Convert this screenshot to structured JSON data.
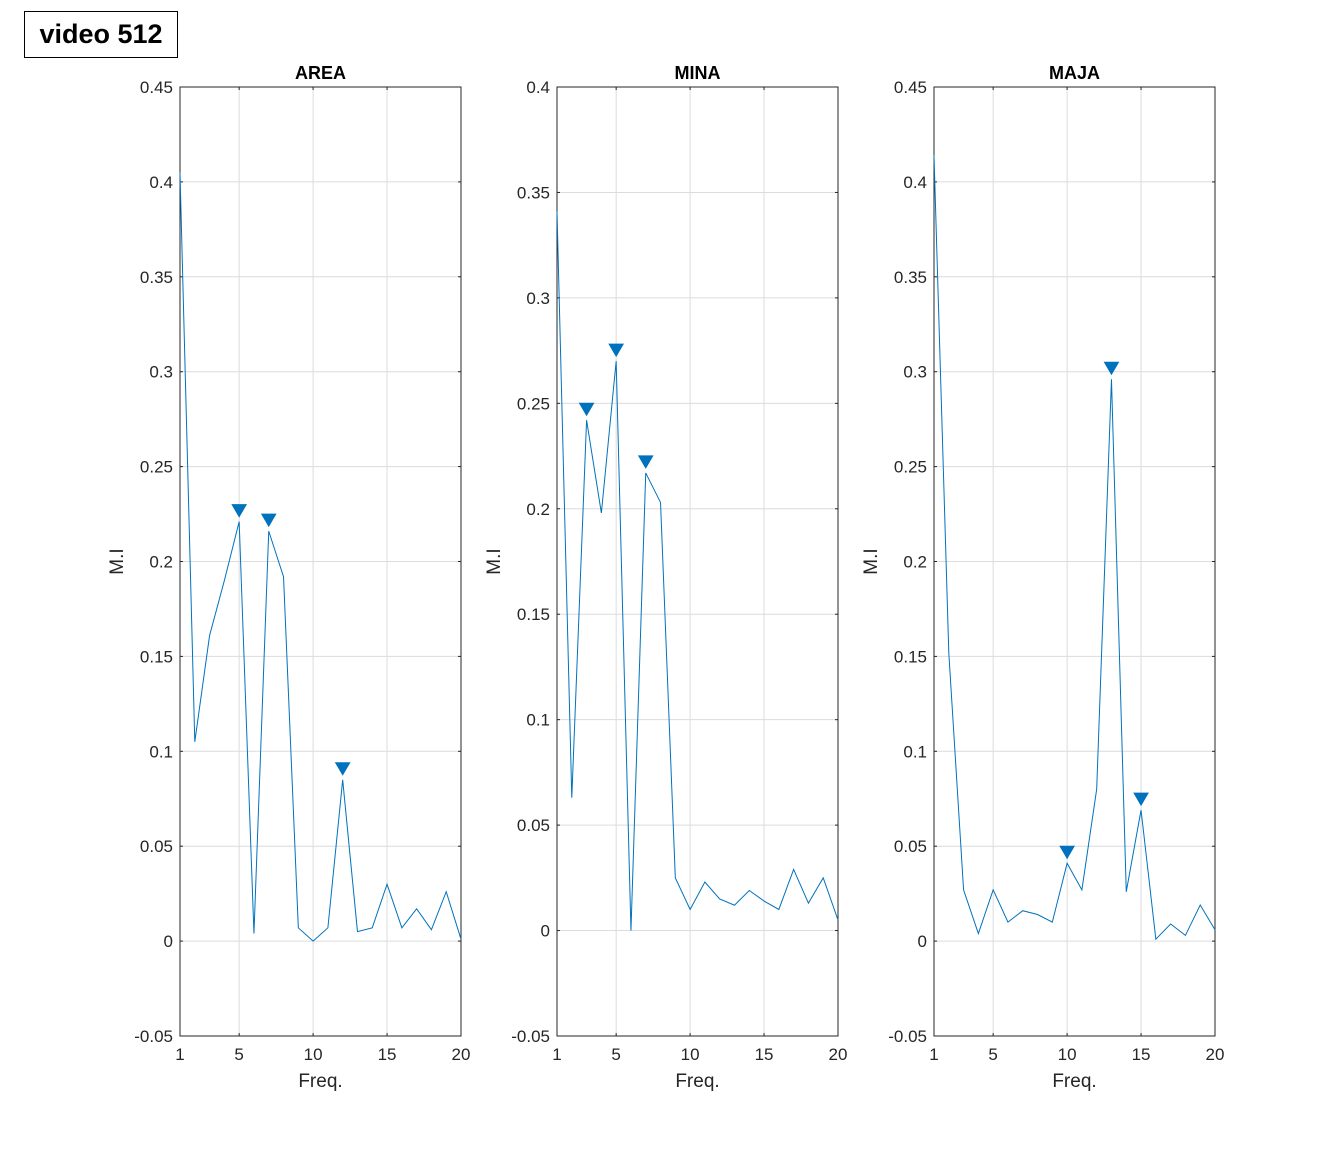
{
  "figure": {
    "annotation": "video 512",
    "colors": {
      "line": "#0072BD",
      "grid": "#dcdcdc",
      "axes": "#262626",
      "background": "#ffffff"
    }
  },
  "chart_data": [
    {
      "type": "line",
      "title": "AREA",
      "xlabel": "Freq.",
      "ylabel": "M.I",
      "xlim": [
        1,
        20
      ],
      "ylim": [
        -0.05,
        0.45
      ],
      "xticks": [
        1,
        5,
        10,
        15,
        20
      ],
      "xtick_labels": [
        "1",
        "5",
        "10",
        "15",
        "20"
      ],
      "yticks": [
        -0.05,
        0,
        0.05,
        0.1,
        0.15,
        0.2,
        0.25,
        0.3,
        0.35,
        0.4,
        0.45
      ],
      "ytick_labels": [
        "-0.05",
        "0",
        "0.05",
        "0.1",
        "0.15",
        "0.2",
        "0.25",
        "0.3",
        "0.35",
        "0.4",
        "0.45"
      ],
      "grid": true,
      "x": [
        1,
        2,
        3,
        4,
        5,
        6,
        7,
        8,
        9,
        10,
        11,
        12,
        13,
        14,
        15,
        16,
        17,
        18,
        19,
        20
      ],
      "y": [
        0.405,
        0.105,
        0.161,
        0.19,
        0.221,
        0.004,
        0.216,
        0.192,
        0.007,
        0.0,
        0.007,
        0.085,
        0.005,
        0.007,
        0.03,
        0.007,
        0.017,
        0.006,
        0.026,
        0.001
      ],
      "peaks": [
        {
          "x": 5,
          "y": 0.221
        },
        {
          "x": 7,
          "y": 0.216
        },
        {
          "x": 12,
          "y": 0.085
        }
      ]
    },
    {
      "type": "line",
      "title": "MINA",
      "xlabel": "Freq.",
      "ylabel": "M.I",
      "xlim": [
        1,
        20
      ],
      "ylim": [
        -0.05,
        0.4
      ],
      "xticks": [
        1,
        5,
        10,
        15,
        20
      ],
      "xtick_labels": [
        "1",
        "5",
        "10",
        "15",
        "20"
      ],
      "yticks": [
        -0.05,
        0,
        0.05,
        0.1,
        0.15,
        0.2,
        0.25,
        0.3,
        0.35,
        0.4
      ],
      "ytick_labels": [
        "-0.05",
        "0",
        "0.05",
        "0.1",
        "0.15",
        "0.2",
        "0.25",
        "0.3",
        "0.35",
        "0.4"
      ],
      "grid": true,
      "x": [
        1,
        2,
        3,
        4,
        5,
        6,
        7,
        8,
        9,
        10,
        11,
        12,
        13,
        14,
        15,
        16,
        17,
        18,
        19,
        20
      ],
      "y": [
        0.341,
        0.063,
        0.242,
        0.198,
        0.27,
        0.0,
        0.217,
        0.203,
        0.025,
        0.01,
        0.023,
        0.015,
        0.012,
        0.019,
        0.014,
        0.01,
        0.029,
        0.013,
        0.025,
        0.005
      ],
      "peaks": [
        {
          "x": 3,
          "y": 0.242
        },
        {
          "x": 5,
          "y": 0.27
        },
        {
          "x": 7,
          "y": 0.217
        }
      ]
    },
    {
      "type": "line",
      "title": "MAJA",
      "xlabel": "Freq.",
      "ylabel": "M.I",
      "xlim": [
        1,
        20
      ],
      "ylim": [
        -0.05,
        0.45
      ],
      "xticks": [
        1,
        5,
        10,
        15,
        20
      ],
      "xtick_labels": [
        "1",
        "5",
        "10",
        "15",
        "20"
      ],
      "yticks": [
        -0.05,
        0,
        0.05,
        0.1,
        0.15,
        0.2,
        0.25,
        0.3,
        0.35,
        0.4,
        0.45
      ],
      "ytick_labels": [
        "-0.05",
        "0",
        "0.05",
        "0.1",
        "0.15",
        "0.2",
        "0.25",
        "0.3",
        "0.35",
        "0.4",
        "0.45"
      ],
      "grid": true,
      "x": [
        1,
        2,
        3,
        4,
        5,
        6,
        7,
        8,
        9,
        10,
        11,
        12,
        13,
        14,
        15,
        16,
        17,
        18,
        19,
        20
      ],
      "y": [
        0.414,
        0.152,
        0.027,
        0.004,
        0.027,
        0.01,
        0.016,
        0.014,
        0.01,
        0.041,
        0.027,
        0.08,
        0.296,
        0.026,
        0.069,
        0.001,
        0.009,
        0.003,
        0.019,
        0.006
      ],
      "peaks": [
        {
          "x": 10,
          "y": 0.041
        },
        {
          "x": 13,
          "y": 0.296
        },
        {
          "x": 15,
          "y": 0.069
        }
      ]
    }
  ]
}
